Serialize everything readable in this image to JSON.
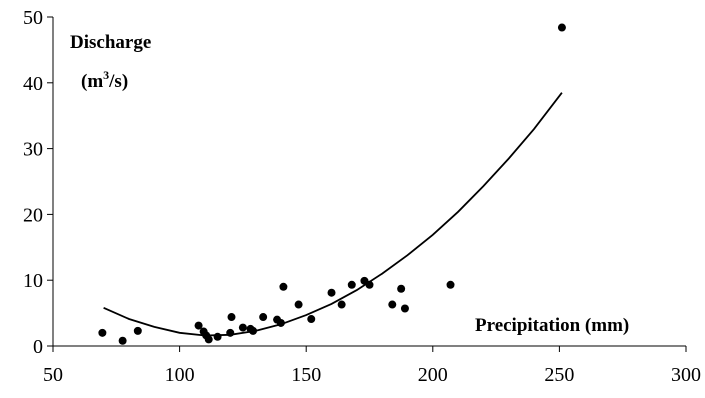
{
  "chart_data": {
    "type": "scatter",
    "title": "",
    "ylabel_line1": "Discharge",
    "ylabel_line2_prefix": "(m",
    "ylabel_line2_sup": "3",
    "ylabel_line2_suffix": "/s)",
    "xlabel": "Precipitation (mm)",
    "xlim": [
      50,
      300
    ],
    "ylim": [
      0,
      50
    ],
    "xticks": [
      "50",
      "100",
      "150",
      "200",
      "250",
      "300"
    ],
    "yticks": [
      "0",
      "10",
      "20",
      "30",
      "40",
      "50"
    ],
    "grid": false,
    "legend": "none",
    "point_color": "#000000",
    "series": [
      {
        "kind": "points",
        "x": [
          69.5,
          77.5,
          83.5,
          107.5,
          109.5,
          110.5,
          111.5,
          115,
          120,
          120.5,
          125,
          128,
          129,
          133,
          138.5,
          140,
          141,
          147,
          152,
          160,
          164,
          168,
          173,
          175,
          184,
          187.5,
          189,
          207,
          251
        ],
        "y": [
          2.0,
          0.8,
          2.3,
          3.1,
          2.2,
          1.6,
          1.0,
          1.4,
          2.0,
          4.4,
          2.8,
          2.6,
          2.3,
          4.4,
          4.0,
          3.5,
          9.0,
          6.3,
          4.1,
          8.1,
          6.3,
          9.3,
          9.9,
          9.3,
          6.3,
          8.7,
          5.7,
          9.3,
          48.4
        ]
      },
      {
        "kind": "trend",
        "x": [
          70,
          80,
          90,
          100,
          110,
          120,
          130,
          140,
          150,
          160,
          170,
          180,
          190,
          200,
          210,
          220,
          230,
          240,
          251
        ],
        "y": [
          5.8,
          4.1,
          2.9,
          2.0,
          1.6,
          1.7,
          2.3,
          3.3,
          4.7,
          6.4,
          8.5,
          11.0,
          13.8,
          16.9,
          20.4,
          24.3,
          28.5,
          33.0,
          38.5
        ]
      }
    ]
  }
}
